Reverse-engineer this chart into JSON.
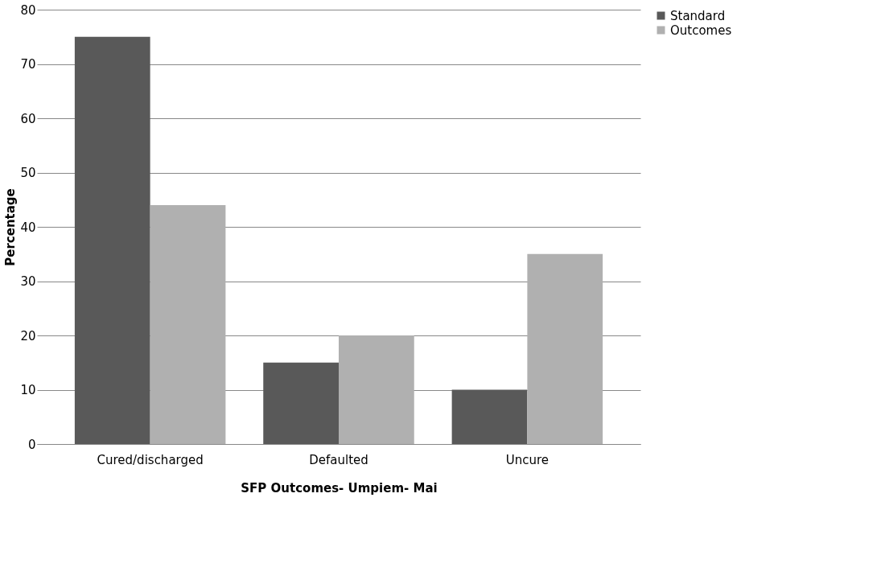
{
  "chart_data": {
    "type": "bar",
    "xlabel": "SFP Outcomes- Umpiem- Mai",
    "ylabel": "Percentage",
    "categories": [
      "Cured/discharged",
      "Defaulted",
      "Uncure"
    ],
    "series": [
      {
        "name": "Standard",
        "color": "#595959",
        "values": [
          75,
          15,
          10
        ]
      },
      {
        "name": "Outcomes",
        "color": "#b0b0b0",
        "values": [
          44,
          20,
          35
        ]
      }
    ],
    "ylim": [
      0,
      80
    ],
    "yticks": [
      0,
      10,
      20,
      30,
      40,
      50,
      60,
      70,
      80
    ],
    "grid": "y",
    "legend": "right"
  }
}
